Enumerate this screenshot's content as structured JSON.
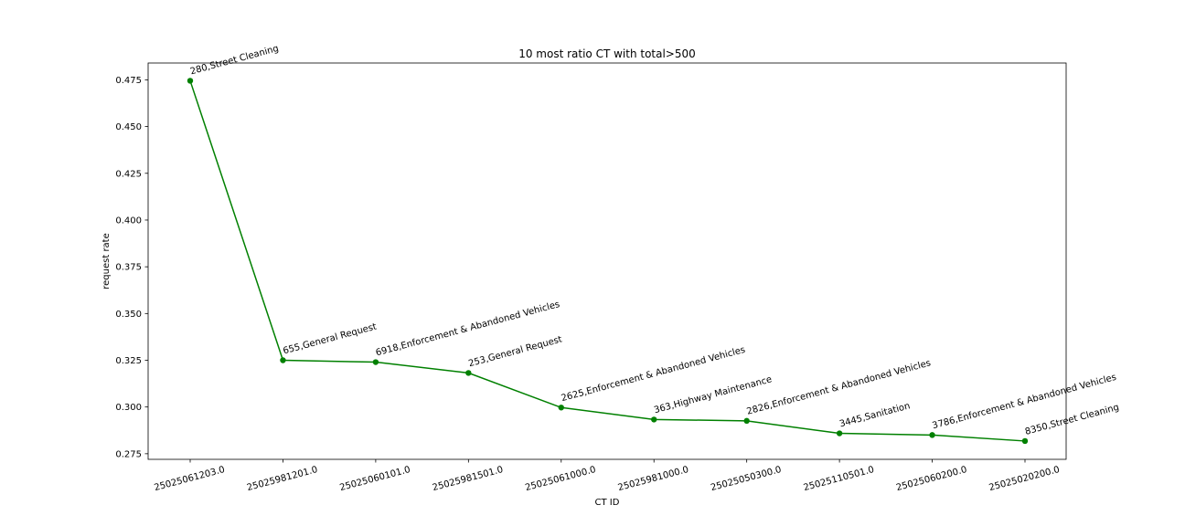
{
  "chart_data": {
    "type": "line",
    "title": "10 most ratio CT with total>500",
    "xlabel": "CT ID",
    "ylabel": "request rate",
    "categories": [
      "25025061203.0",
      "25025981201.0",
      "25025060101.0",
      "25025981501.0",
      "25025061000.0",
      "25025981000.0",
      "25025050300.0",
      "25025110501.0",
      "25025060200.0",
      "25025020200.0"
    ],
    "values": [
      0.4745,
      0.325,
      0.324,
      0.3182,
      0.2997,
      0.2933,
      0.2926,
      0.2859,
      0.285,
      0.2818
    ],
    "point_labels": [
      "280,Street Cleaning",
      "655,General Request",
      "6918,Enforcement & Abandoned Vehicles",
      "253,General Request",
      "2625,Enforcement & Abandoned Vehicles",
      "363,Highway Maintenance",
      "2826,Enforcement & Abandoned Vehicles",
      "3445,Sanitation",
      "3786,Enforcement & Abandoned Vehicles",
      "8350,Street Cleaning"
    ],
    "y_ticks": [
      0.275,
      0.3,
      0.325,
      0.35,
      0.375,
      0.4,
      0.425,
      0.45,
      0.475
    ],
    "y_tick_labels": [
      "0.275",
      "0.300",
      "0.325",
      "0.350",
      "0.375",
      "0.400",
      "0.425",
      "0.450",
      "0.475"
    ],
    "ylim": [
      0.272,
      0.484
    ],
    "grid": false,
    "line_color": "#008000",
    "marker": "circle"
  }
}
